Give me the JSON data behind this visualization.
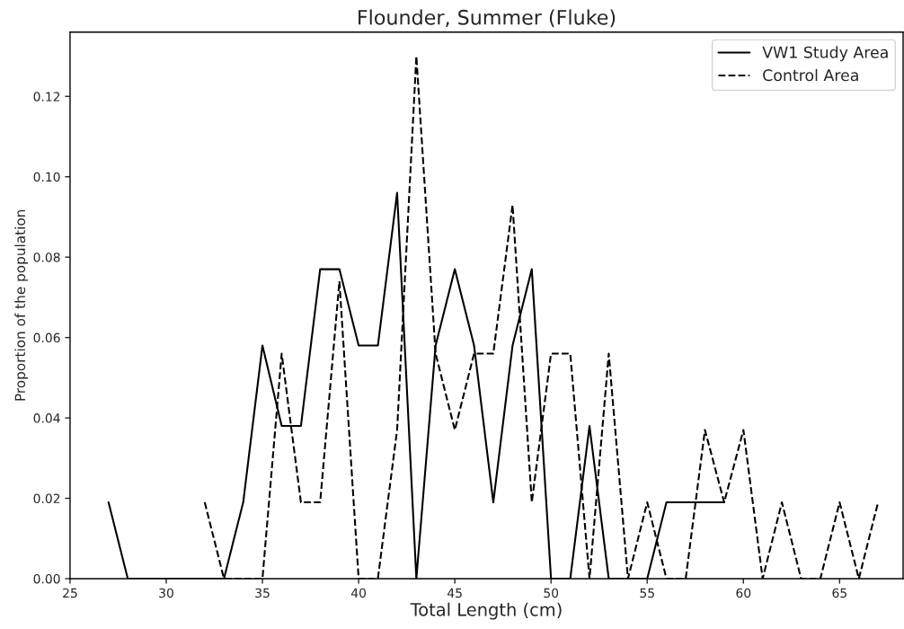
{
  "chart_data": {
    "type": "line",
    "title": "Flounder, Summer (Fluke)",
    "xlabel": "Total Length (cm)",
    "ylabel": "Proportion of the population",
    "series": [
      {
        "name": "VW1 Study Area",
        "color": "#000000",
        "line_style": "solid",
        "x": [
          27,
          28,
          29,
          30,
          31,
          32,
          33,
          34,
          35,
          36,
          37,
          38,
          39,
          40,
          41,
          42,
          43,
          44,
          45,
          46,
          47,
          48,
          49,
          50,
          51,
          52,
          53,
          54,
          55,
          56,
          57,
          58,
          59
        ],
        "values": [
          0.019,
          0,
          0,
          0,
          0,
          0,
          0,
          0.019,
          0.058,
          0.038,
          0.038,
          0.077,
          0.077,
          0.058,
          0.058,
          0.096,
          0,
          0.058,
          0.077,
          0.058,
          0.019,
          0.058,
          0.077,
          0,
          0,
          0.038,
          0,
          0,
          0,
          0.019,
          0.019,
          0.019,
          0.019
        ]
      },
      {
        "name": "Control Area",
        "color": "#000000",
        "line_style": "dashed",
        "x": [
          32,
          33,
          34,
          35,
          36,
          37,
          38,
          39,
          40,
          41,
          42,
          43,
          44,
          45,
          46,
          47,
          48,
          49,
          50,
          51,
          52,
          53,
          54,
          55,
          56,
          57,
          58,
          59,
          60,
          61,
          62,
          63,
          64,
          65,
          66,
          67
        ],
        "values": [
          0.019,
          0,
          0,
          0,
          0.056,
          0.019,
          0.019,
          0.074,
          0,
          0,
          0.037,
          0.13,
          0.056,
          0.037,
          0.056,
          0.056,
          0.093,
          0.019,
          0.056,
          0.056,
          0,
          0.056,
          0,
          0.019,
          0,
          0,
          0.037,
          0.019,
          0.037,
          0,
          0.019,
          0,
          0,
          0.019,
          0,
          0.019
        ]
      }
    ],
    "xlim": [
      25,
      68.3
    ],
    "ylim": [
      0,
      0.136
    ],
    "xticks": [
      25,
      30,
      35,
      40,
      45,
      50,
      55,
      60,
      65
    ],
    "yticks": [
      {
        "value": 0,
        "label": "0.00"
      },
      {
        "value": 0.02,
        "label": "0.02"
      },
      {
        "value": 0.04,
        "label": "0.04"
      },
      {
        "value": 0.06,
        "label": "0.06"
      },
      {
        "value": 0.08,
        "label": "0.08"
      },
      {
        "value": 0.1,
        "label": "0.10"
      },
      {
        "value": 0.12,
        "label": "0.12"
      }
    ],
    "grid": false,
    "legend": "top right",
    "marker": "none"
  }
}
